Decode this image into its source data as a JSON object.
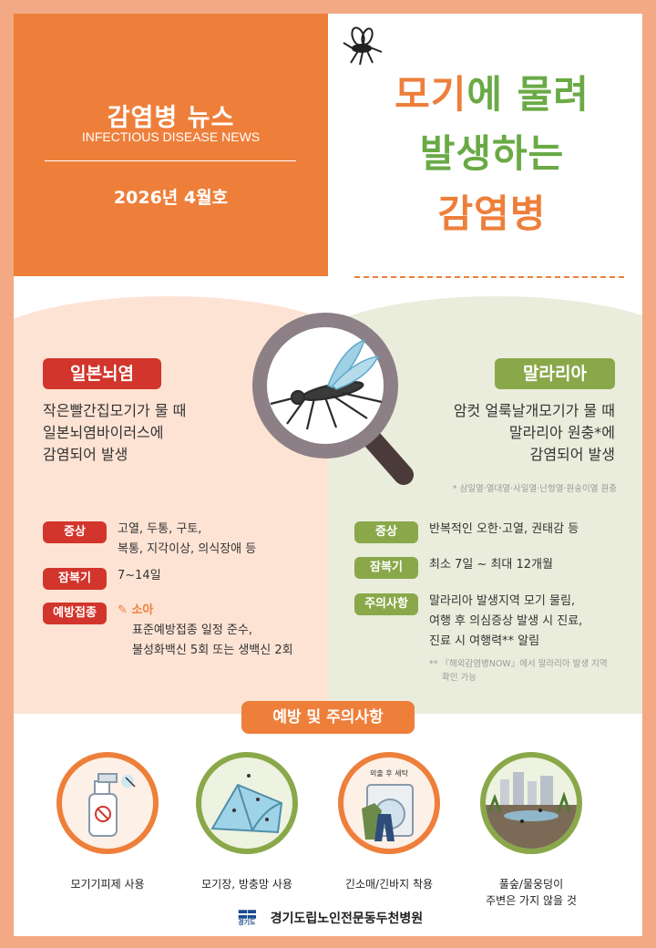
{
  "header": {
    "title": "감염병 뉴스",
    "subtitle": "INFECTIOUS DISEASE NEWS",
    "date": "2026년 4월호"
  },
  "headline": {
    "line1_a": "모기",
    "line1_b": "에 물려",
    "line2": "발생하는",
    "line3": "감염병"
  },
  "japanese_encephalitis": {
    "label": "일본뇌염",
    "desc": [
      "작은빨간집모기가 물 때",
      "일본뇌염바이러스에",
      "감염되어 발생"
    ],
    "symptom_label": "증상",
    "symptom": [
      "고열, 두통, 구토,",
      "복통, 지각이상, 의식장애 등"
    ],
    "incubation_label": "잠복기",
    "incubation": "7~14일",
    "vaccine_label": "예방접종",
    "vaccine_target": "소아",
    "vaccine": [
      "표준예방접종 일정 준수,",
      "불성화백신 5회 또는 생백신 2회"
    ]
  },
  "malaria": {
    "label": "말라리아",
    "desc": [
      "암컷 얼룩날개모기가 물 때",
      "말라리아 원충*에",
      "감염되어 발생"
    ],
    "footnote": "* 삼일열·열대열·사일열·난형열·원숭이열 원충",
    "symptom_label": "증상",
    "symptom": "반복적인 오한·고열, 권태감 등",
    "incubation_label": "잠복기",
    "incubation": "최소 7일 ~ 최대 12개월",
    "caution_label": "주의사항",
    "caution": [
      "말라리아 발생지역 모기 물림,",
      "여행 후 의심증상 발생 시 진료,",
      "진료 시 여행력** 알림"
    ],
    "footnote2": [
      "** 『해외감염병NOW』에서 말라리아 발생 지역",
      "확인 가능"
    ]
  },
  "prevention": {
    "title": "예방 및 주의사항",
    "wash_label": "외출 후 세탁",
    "items": [
      {
        "caption": [
          "모기기피제 사용"
        ]
      },
      {
        "caption": [
          "모기장, 방충망 사용"
        ]
      },
      {
        "caption": [
          "긴소매/긴바지 착용"
        ]
      },
      {
        "caption": [
          "풀숲/물웅덩이",
          "주변은 가지 않을 것"
        ]
      }
    ]
  },
  "footer": {
    "logo_text": "경기도",
    "org": "경기도립노인전문동두천병원"
  },
  "colors": {
    "orange": "#ee7f3b",
    "green": "#6aaa46",
    "red": "#d2352b",
    "olive": "#8aa84a"
  }
}
